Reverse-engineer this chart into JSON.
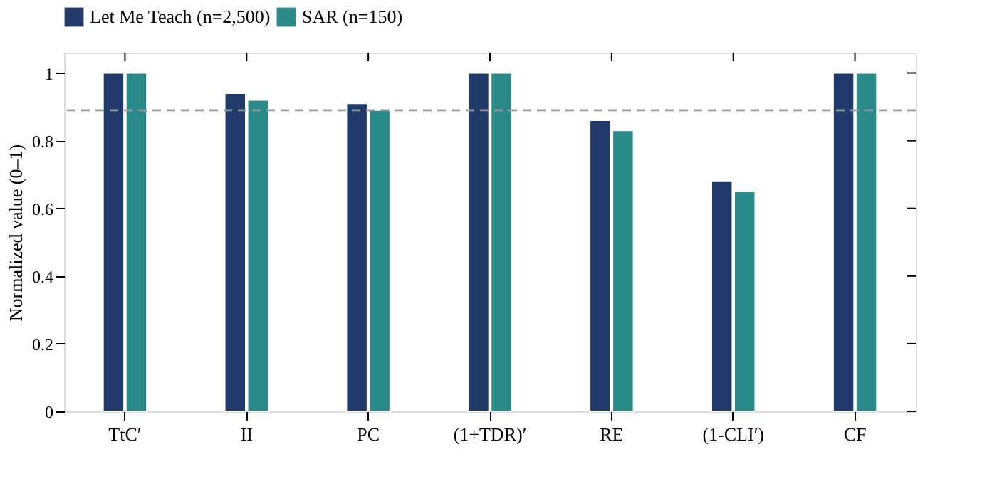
{
  "chart_data": {
    "type": "bar",
    "ylabel": "Normalized value (0–1)",
    "categories": [
      "TtC′",
      "II",
      "PC",
      "(1+TDR)′",
      "RE",
      "(1-CLI′)",
      "CF"
    ],
    "series": [
      {
        "name": "Let Me Teach (n=2,500)",
        "color": "#1f3a6b",
        "values": [
          1,
          0.94,
          0.91,
          1,
          0.86,
          0.68,
          1
        ]
      },
      {
        "name": "SAR (n=150)",
        "color": "#2a8a8a",
        "values": [
          1,
          0.92,
          0.89,
          1,
          0.83,
          0.65,
          1
        ]
      }
    ],
    "ylim": [
      0,
      1.06
    ],
    "yticks": [
      0,
      0.2,
      0.4,
      0.6,
      0.8,
      1
    ],
    "grid": false,
    "legend": "top",
    "ref_lines": [
      {
        "axis": "y",
        "value": 0.89,
        "color": "#999999",
        "line_style": "dashed"
      }
    ]
  }
}
